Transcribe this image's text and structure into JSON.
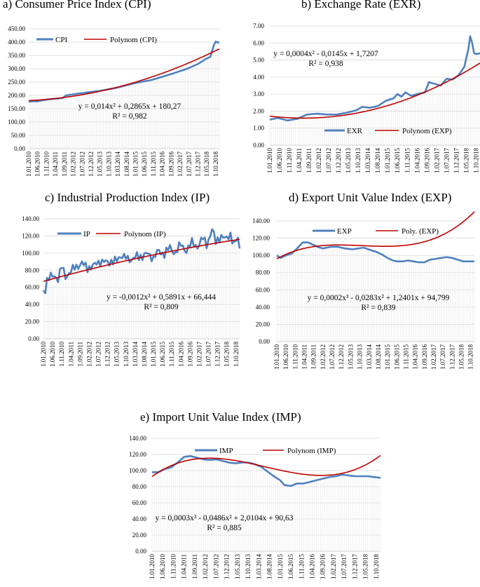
{
  "colors": {
    "series": "#4f81bd",
    "trend": "#c00000",
    "grid": "#d9d9d9",
    "axis": "#bfbfbf"
  },
  "chart_data": [
    {
      "type": "line",
      "title": "a) Consumer Price Index (CPI)",
      "series_name": "CPI",
      "trend_name": "Polynom (CPI)",
      "equation": "y = 0,014x² + 0,2865x + 180,27",
      "r2": "R² = 0,982",
      "trend_coefficients": [
        180.27,
        0.2865,
        0.014
      ],
      "ylim": [
        0,
        450
      ],
      "yticks": [
        "0.00",
        "50.00",
        "100.00",
        "150.00",
        "200.00",
        "250.00",
        "300.00",
        "350.00",
        "400.00",
        "450.00"
      ],
      "xticks": [
        "1.01.2010",
        "1.06.2010",
        "1.11.2010",
        "1.04.2011",
        "1.09.2011",
        "1.02.2012",
        "1.07.2012",
        "1.12.2012",
        "1.05.2013",
        "1.10.2013",
        "1.03.2014",
        "1.08.2014",
        "1.01.2015",
        "1.06.2015",
        "1.11.2015",
        "1.04.2016",
        "1.09.2016",
        "1.02.2017",
        "1.07.2017",
        "1.12.2017",
        "1.05.2018",
        "1.10.2018"
      ],
      "n_points": 108,
      "knots": [
        [
          1,
          177
        ],
        [
          6,
          178
        ],
        [
          12,
          185
        ],
        [
          20,
          190
        ],
        [
          22,
          200
        ],
        [
          30,
          208
        ],
        [
          40,
          216
        ],
        [
          50,
          228
        ],
        [
          60,
          245
        ],
        [
          70,
          258
        ],
        [
          80,
          278
        ],
        [
          90,
          300
        ],
        [
          96,
          318
        ],
        [
          100,
          335
        ],
        [
          103,
          345
        ],
        [
          105,
          390
        ],
        [
          106,
          402
        ],
        [
          107,
          398
        ],
        [
          108,
          400
        ]
      ]
    },
    {
      "type": "line",
      "title": "b) Exchange Rate (EXR)",
      "series_name": "EXR",
      "trend_name": "Polynom (EXP)",
      "equation": "y = 0,0004x² - 0,0145x + 1,7207",
      "r2": "R² = 0,938",
      "trend_coefficients": [
        1.7207,
        -0.0145,
        0.0004
      ],
      "ylim": [
        0,
        7
      ],
      "yticks": [
        "0.00",
        "1.00",
        "2.00",
        "3.00",
        "4.00",
        "5.00",
        "6.00",
        "7.00"
      ],
      "xticks": [
        "1.01.2010",
        "1.06.2010",
        "1.11.2010",
        "1.04.2011",
        "1.09.2011",
        "1.02.2012",
        "1.07.2012",
        "1.12.2012",
        "1.05.2013",
        "1.10.2013",
        "1.03.2014",
        "1.08.2014",
        "1.01.2015",
        "1.06.2015",
        "1.11.2015",
        "1.04.2016",
        "1.09.2016",
        "1.02.2017",
        "1.07.2017",
        "1.12.2017",
        "1.05.2018",
        "1.10.2018"
      ],
      "n_points": 108,
      "knots": [
        [
          1,
          1.5
        ],
        [
          5,
          1.6
        ],
        [
          10,
          1.45
        ],
        [
          15,
          1.55
        ],
        [
          20,
          1.8
        ],
        [
          25,
          1.85
        ],
        [
          30,
          1.8
        ],
        [
          35,
          1.8
        ],
        [
          40,
          1.9
        ],
        [
          45,
          2.05
        ],
        [
          48,
          2.25
        ],
        [
          52,
          2.2
        ],
        [
          56,
          2.3
        ],
        [
          60,
          2.6
        ],
        [
          64,
          2.75
        ],
        [
          66,
          3.0
        ],
        [
          68,
          2.85
        ],
        [
          70,
          3.1
        ],
        [
          73,
          2.9
        ],
        [
          76,
          3.0
        ],
        [
          80,
          3.1
        ],
        [
          82,
          3.7
        ],
        [
          85,
          3.6
        ],
        [
          88,
          3.5
        ],
        [
          91,
          3.9
        ],
        [
          94,
          3.85
        ],
        [
          97,
          4.1
        ],
        [
          100,
          4.6
        ],
        [
          102,
          5.6
        ],
        [
          103,
          6.4
        ],
        [
          104,
          6.0
        ],
        [
          105,
          5.4
        ],
        [
          106,
          5.35
        ],
        [
          108,
          5.4
        ]
      ]
    },
    {
      "type": "line",
      "title": "c) Industrial Production Index (IP)",
      "series_name": "IP",
      "trend_name": "Polynom (IP)",
      "equation": "y = -0,0012x² + 0,5891x + 66,444",
      "r2": "R² = 0,809",
      "trend_coefficients": [
        66.444,
        0.5891,
        -0.0012
      ],
      "ylim": [
        0,
        140
      ],
      "yticks": [
        "0.00",
        "20.00",
        "40.00",
        "60.00",
        "80.00",
        "100.00",
        "120.00",
        "140.00"
      ],
      "xticks": [
        "1.01.2010",
        "1.06.2010",
        "1.11.2010",
        "1.04.2011",
        "1.09.2011",
        "1.02.2012",
        "1.07.2012",
        "1.12.2012",
        "1.05.2013",
        "1.10.2013",
        "1.03.2014",
        "1.08.2014",
        "1.01.2015",
        "1.06.2015",
        "1.11.2015",
        "1.04.2016",
        "1.09.2016",
        "1.02.2017",
        "1.07.2017",
        "1.12.2017",
        "1.05.2018",
        "1.10.2018"
      ],
      "n_points": 108,
      "knots": [
        [
          1,
          57
        ],
        [
          2,
          58
        ],
        [
          3,
          68
        ],
        [
          5,
          72
        ],
        [
          7,
          74
        ],
        [
          9,
          70
        ],
        [
          11,
          84
        ],
        [
          13,
          72
        ],
        [
          16,
          80
        ],
        [
          19,
          83
        ],
        [
          22,
          90
        ],
        [
          25,
          80
        ],
        [
          28,
          88
        ],
        [
          31,
          86
        ],
        [
          34,
          94
        ],
        [
          37,
          85
        ],
        [
          40,
          95
        ],
        [
          43,
          92
        ],
        [
          46,
          99
        ],
        [
          49,
          88
        ],
        [
          52,
          100
        ],
        [
          55,
          93
        ],
        [
          58,
          102
        ],
        [
          61,
          92
        ],
        [
          64,
          104
        ],
        [
          67,
          98
        ],
        [
          70,
          107
        ],
        [
          73,
          100
        ],
        [
          76,
          110
        ],
        [
          79,
          103
        ],
        [
          82,
          112
        ],
        [
          85,
          108
        ],
        [
          88,
          117
        ],
        [
          90,
          110
        ],
        [
          93,
          128
        ],
        [
          95,
          112
        ],
        [
          98,
          121
        ],
        [
          101,
          115
        ],
        [
          103,
          122
        ],
        [
          105,
          112
        ],
        [
          107,
          116
        ],
        [
          108,
          102
        ]
      ],
      "noise_amplitude": 6
    },
    {
      "type": "line",
      "title": "d) Export Unit Value Index (EXP)",
      "series_name": "EXP",
      "trend_name": "Poly. (EXP)",
      "equation": "y = 0,0002x³ - 0,0283x² + 1,2401x + 94,799",
      "r2": "R² = 0,839",
      "trend_coefficients": [
        94.799,
        1.2401,
        -0.0283,
        0.0002
      ],
      "ylim": [
        0,
        140
      ],
      "yticks": [
        "0.00",
        "20.00",
        "40.00",
        "60.00",
        "80.00",
        "100.00",
        "120.00",
        "140.00"
      ],
      "xticks": [
        "1.01.2010",
        "1.06.2010",
        "1.11.2010",
        "1.04.2011",
        "1.09.2011",
        "1.02.2012",
        "1.07.2012",
        "1.12.2012",
        "1.05.2013",
        "1.10.2013",
        "1.03.2014",
        "1.08.2014",
        "1.01.2015",
        "1.06.2015",
        "1.11.2015",
        "1.04.2016",
        "1.09.2016",
        "1.02.2017",
        "1.07.2017",
        "1.12.2017",
        "1.05.2018",
        "1.10.2018"
      ],
      "n_points": 108,
      "knots": [
        [
          1,
          100
        ],
        [
          3,
          97
        ],
        [
          6,
          100
        ],
        [
          9,
          102
        ],
        [
          12,
          108
        ],
        [
          15,
          115
        ],
        [
          18,
          115
        ],
        [
          20,
          113
        ],
        [
          23,
          110
        ],
        [
          26,
          108
        ],
        [
          30,
          110
        ],
        [
          34,
          110
        ],
        [
          38,
          108
        ],
        [
          42,
          107
        ],
        [
          45,
          108
        ],
        [
          48,
          109
        ],
        [
          52,
          106
        ],
        [
          55,
          104
        ],
        [
          58,
          101
        ],
        [
          61,
          97
        ],
        [
          64,
          94
        ],
        [
          66,
          93
        ],
        [
          69,
          93
        ],
        [
          72,
          94
        ],
        [
          75,
          93
        ],
        [
          78,
          92
        ],
        [
          81,
          92
        ],
        [
          84,
          95
        ],
        [
          87,
          96
        ],
        [
          90,
          97
        ],
        [
          93,
          98
        ],
        [
          96,
          97
        ],
        [
          99,
          95
        ],
        [
          102,
          93
        ],
        [
          105,
          93
        ],
        [
          108,
          93
        ]
      ]
    },
    {
      "type": "line",
      "title": "e) Import Unit Value Index (IMP)",
      "series_name": "IMP",
      "trend_name": "Polynom (IMP)",
      "equation": "y = 0,0003x³ - 0,0486x² + 2,0104x + 90,63",
      "r2": "R² = 0,885",
      "trend_coefficients": [
        90.63,
        2.0104,
        -0.0486,
        0.0003
      ],
      "ylim": [
        0,
        140
      ],
      "yticks": [
        "0.00",
        "20.00",
        "40.00",
        "60.00",
        "80.00",
        "100.00",
        "120.00",
        "140.00"
      ],
      "xticks": [
        "1.01.2010",
        "1.06.2010",
        "1.11.2010",
        "1.04.2011",
        "1.09.2011",
        "1.02.2012",
        "1.07.2012",
        "1.12.2012",
        "1.05.2013",
        "1.10.2013",
        "1.03.2014",
        "1.08.2014",
        "1.01.2015",
        "1.06.2015",
        "1.11.2015",
        "1.04.2016",
        "1.09.2016",
        "1.02.2017",
        "1.07.2017",
        "1.12.2017",
        "1.05.2018",
        "1.10.2018"
      ],
      "n_points": 108,
      "knots": [
        [
          1,
          98
        ],
        [
          4,
          98
        ],
        [
          7,
          102
        ],
        [
          10,
          104
        ],
        [
          13,
          110
        ],
        [
          16,
          117
        ],
        [
          19,
          118
        ],
        [
          22,
          116
        ],
        [
          25,
          114
        ],
        [
          28,
          113
        ],
        [
          31,
          114
        ],
        [
          34,
          112
        ],
        [
          37,
          110
        ],
        [
          40,
          109
        ],
        [
          43,
          110
        ],
        [
          46,
          110
        ],
        [
          49,
          108
        ],
        [
          52,
          105
        ],
        [
          55,
          99
        ],
        [
          58,
          93
        ],
        [
          61,
          88
        ],
        [
          63,
          82
        ],
        [
          66,
          81
        ],
        [
          69,
          84
        ],
        [
          72,
          84
        ],
        [
          75,
          86
        ],
        [
          78,
          88
        ],
        [
          81,
          90
        ],
        [
          84,
          92
        ],
        [
          87,
          93
        ],
        [
          90,
          95
        ],
        [
          93,
          94
        ],
        [
          96,
          93
        ],
        [
          99,
          93
        ],
        [
          102,
          93
        ],
        [
          105,
          92
        ],
        [
          108,
          91
        ]
      ]
    }
  ]
}
